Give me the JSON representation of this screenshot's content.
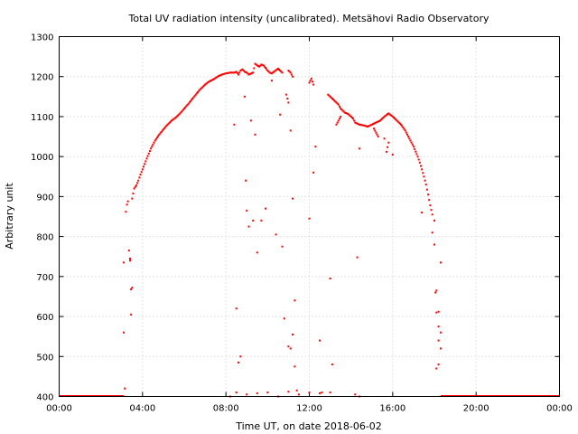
{
  "chart_data": {
    "type": "scatter",
    "title": "Total UV radiation intensity (uncalibrated). Metsähovi Radio Observatory",
    "xlabel": "Time UT, on date 2018-06-02",
    "ylabel": "Arbitrary unit",
    "xlim": [
      0,
      24
    ],
    "ylim": [
      400,
      1300
    ],
    "x_ticks": [
      {
        "value": 0,
        "label": "00:00"
      },
      {
        "value": 4,
        "label": "04:00"
      },
      {
        "value": 8,
        "label": "08:00"
      },
      {
        "value": 12,
        "label": "12:00"
      },
      {
        "value": 16,
        "label": "16:00"
      },
      {
        "value": 20,
        "label": "20:00"
      },
      {
        "value": 24,
        "label": "00:00"
      }
    ],
    "y_ticks": [
      400,
      500,
      600,
      700,
      800,
      900,
      1000,
      1100,
      1200,
      1300
    ],
    "grid": true,
    "marker_color": "#ff0000",
    "series": [
      {
        "points": [
          [
            3.1,
            560
          ],
          [
            3.1,
            735
          ],
          [
            3.15,
            420
          ],
          [
            3.2,
            862
          ],
          [
            3.25,
            880
          ],
          [
            3.3,
            888
          ],
          [
            3.35,
            765
          ],
          [
            3.4,
            745
          ],
          [
            3.4,
            740
          ],
          [
            3.45,
            668
          ],
          [
            3.5,
            672
          ],
          [
            3.45,
            605
          ],
          [
            3.5,
            895
          ],
          [
            3.6,
            920
          ],
          [
            3.7,
            928
          ],
          [
            3.8,
            940
          ],
          [
            3.9,
            955
          ],
          [
            4.0,
            968
          ],
          [
            4.2,
            995
          ],
          [
            4.4,
            1020
          ],
          [
            4.6,
            1040
          ],
          [
            4.8,
            1055
          ],
          [
            5.0,
            1068
          ],
          [
            5.2,
            1080
          ],
          [
            5.4,
            1090
          ],
          [
            5.6,
            1098
          ],
          [
            5.8,
            1108
          ],
          [
            6.0,
            1120
          ],
          [
            6.2,
            1132
          ],
          [
            6.4,
            1145
          ],
          [
            6.6,
            1158
          ],
          [
            6.8,
            1170
          ],
          [
            7.0,
            1180
          ],
          [
            7.2,
            1188
          ],
          [
            7.4,
            1193
          ],
          [
            7.6,
            1200
          ],
          [
            7.8,
            1205
          ],
          [
            8.0,
            1208
          ],
          [
            8.2,
            1210
          ],
          [
            8.4,
            1210
          ],
          [
            8.5,
            1212
          ],
          [
            8.6,
            1205
          ],
          [
            8.7,
            1215
          ],
          [
            8.8,
            1218
          ],
          [
            8.9,
            1212
          ],
          [
            9.0,
            1210
          ],
          [
            9.1,
            1205
          ],
          [
            9.3,
            1210
          ],
          [
            9.4,
            1232
          ],
          [
            9.5,
            1228
          ],
          [
            9.6,
            1225
          ],
          [
            9.7,
            1230
          ],
          [
            9.8,
            1228
          ],
          [
            9.9,
            1222
          ],
          [
            10.0,
            1215
          ],
          [
            10.1,
            1210
          ],
          [
            10.2,
            1208
          ],
          [
            10.3,
            1212
          ],
          [
            10.5,
            1220
          ],
          [
            10.6,
            1215
          ],
          [
            10.7,
            1210
          ],
          [
            11.0,
            1215
          ],
          [
            11.1,
            1210
          ],
          [
            11.2,
            1200
          ],
          [
            12.0,
            1185
          ],
          [
            12.1,
            1195
          ],
          [
            12.2,
            1180
          ],
          [
            12.9,
            1155
          ],
          [
            13.0,
            1150
          ],
          [
            13.1,
            1145
          ],
          [
            13.2,
            1140
          ],
          [
            13.3,
            1135
          ],
          [
            13.4,
            1130
          ],
          [
            13.5,
            1120
          ],
          [
            13.6,
            1115
          ],
          [
            13.7,
            1110
          ],
          [
            13.8,
            1108
          ],
          [
            13.9,
            1105
          ],
          [
            14.0,
            1100
          ],
          [
            14.1,
            1095
          ],
          [
            14.2,
            1085
          ],
          [
            14.4,
            1080
          ],
          [
            14.6,
            1078
          ],
          [
            14.8,
            1075
          ],
          [
            15.0,
            1080
          ],
          [
            15.2,
            1085
          ],
          [
            15.4,
            1090
          ],
          [
            15.6,
            1100
          ],
          [
            15.8,
            1108
          ],
          [
            16.0,
            1100
          ],
          [
            16.2,
            1090
          ],
          [
            16.4,
            1080
          ],
          [
            16.6,
            1065
          ],
          [
            16.8,
            1045
          ],
          [
            17.0,
            1025
          ],
          [
            17.2,
            1000
          ],
          [
            17.3,
            985
          ],
          [
            17.4,
            968
          ],
          [
            17.5,
            950
          ],
          [
            17.6,
            930
          ],
          [
            17.7,
            905
          ],
          [
            17.8,
            878
          ],
          [
            17.9,
            855
          ],
          [
            18.0,
            840
          ],
          [
            17.9,
            810
          ],
          [
            18.0,
            780
          ],
          [
            18.1,
            665
          ],
          [
            18.05,
            660
          ],
          [
            18.1,
            610
          ],
          [
            18.2,
            575
          ],
          [
            18.2,
            540
          ],
          [
            18.3,
            520
          ],
          [
            18.2,
            480
          ],
          [
            18.1,
            470
          ],
          [
            18.3,
            735
          ],
          [
            18.2,
            612
          ],
          [
            18.3,
            560
          ],
          [
            8.4,
            1080
          ],
          [
            8.5,
            620
          ],
          [
            8.6,
            485
          ],
          [
            8.7,
            500
          ],
          [
            8.9,
            1150
          ],
          [
            8.95,
            940
          ],
          [
            9.0,
            865
          ],
          [
            9.1,
            825
          ],
          [
            9.2,
            1090
          ],
          [
            9.3,
            840
          ],
          [
            9.4,
            1055
          ],
          [
            9.5,
            760
          ],
          [
            9.7,
            840
          ],
          [
            9.9,
            870
          ],
          [
            10.2,
            1190
          ],
          [
            10.4,
            805
          ],
          [
            10.6,
            1105
          ],
          [
            10.7,
            775
          ],
          [
            10.8,
            595
          ],
          [
            10.9,
            1155
          ],
          [
            11.0,
            1135
          ],
          [
            11.1,
            1065
          ],
          [
            11.2,
            895
          ],
          [
            11.3,
            640
          ],
          [
            11.2,
            555
          ],
          [
            11.0,
            525
          ],
          [
            11.1,
            520
          ],
          [
            11.3,
            475
          ],
          [
            11.4,
            415
          ],
          [
            12.0,
            845
          ],
          [
            12.2,
            960
          ],
          [
            12.3,
            1025
          ],
          [
            12.5,
            540
          ],
          [
            12.6,
            410
          ],
          [
            13.0,
            695
          ],
          [
            13.1,
            480
          ],
          [
            13.3,
            1080
          ],
          [
            13.5,
            1100
          ],
          [
            14.4,
            1020
          ],
          [
            14.3,
            748
          ],
          [
            15.1,
            1070
          ],
          [
            15.3,
            1050
          ],
          [
            15.6,
            1045
          ],
          [
            15.7,
            1012
          ],
          [
            15.8,
            1035
          ],
          [
            16.0,
            1005
          ],
          [
            17.4,
            860
          ],
          [
            8.2,
            400
          ],
          [
            8.5,
            410
          ],
          [
            9.0,
            405
          ],
          [
            9.5,
            408
          ],
          [
            10.0,
            410
          ],
          [
            10.5,
            400
          ],
          [
            11.0,
            412
          ],
          [
            11.5,
            405
          ],
          [
            12.0,
            410
          ],
          [
            12.5,
            408
          ],
          [
            13.0,
            410
          ],
          [
            14.2,
            405
          ],
          [
            14.4,
            400
          ]
        ],
        "baseline_segments": [
          [
            0,
            3.1,
            400
          ],
          [
            18.3,
            24,
            400
          ]
        ]
      }
    ]
  }
}
